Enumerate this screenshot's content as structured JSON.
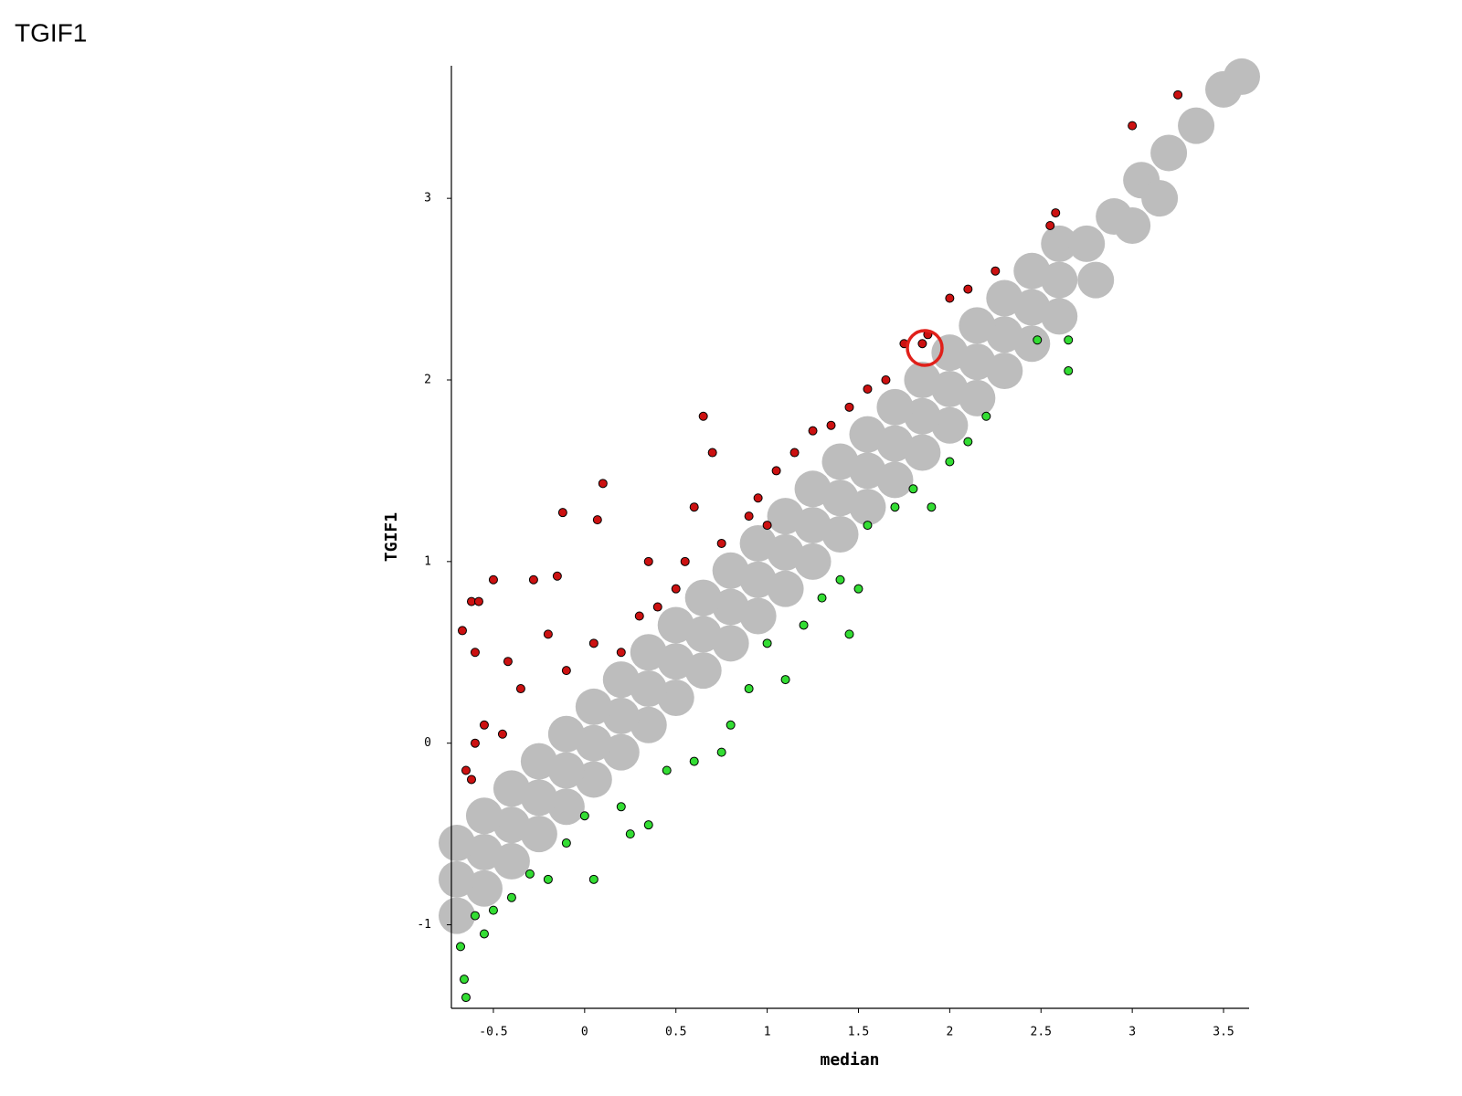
{
  "chart_data": {
    "type": "scatter",
    "title": "TGIF1",
    "xlabel": "median",
    "ylabel": "TGIF1",
    "xlim": [
      -0.73,
      3.64
    ],
    "ylim": [
      -1.46,
      3.73
    ],
    "xticks": [
      -0.5,
      0,
      0.5,
      1,
      1.5,
      2,
      2.5,
      3,
      3.5
    ],
    "yticks": [
      -1,
      0,
      1,
      2,
      3
    ],
    "grid": false,
    "series": [
      {
        "color": "#bdbdbd",
        "x": [
          -0.7,
          -0.55,
          -0.4,
          -0.25,
          -0.1,
          0.05,
          0.2,
          0.35,
          0.5,
          0.65,
          0.8,
          0.95,
          1.1,
          1.25,
          1.4,
          1.55,
          1.7,
          1.85,
          2,
          2.15,
          2.3,
          2.45,
          2.6,
          -0.7,
          -0.55,
          -0.4,
          -0.25,
          -0.1,
          0.05,
          0.2,
          0.35,
          0.5,
          0.65,
          0.8,
          0.95,
          1.1,
          1.25,
          1.4,
          1.55,
          1.7,
          1.85,
          2,
          2.15,
          2.3,
          2.45,
          2.6,
          -0.7,
          -0.55,
          -0.4,
          -0.25,
          -0.1,
          0.05,
          0.2,
          0.35,
          0.5,
          0.65,
          0.8,
          0.95,
          1.1,
          1.25,
          1.4,
          1.55,
          1.7,
          1.85,
          2,
          2.15,
          2.3,
          2.45,
          2.6,
          2.75,
          2.9,
          3.05,
          3.2,
          3.35,
          3.5,
          3.6,
          2.8,
          3.0,
          3.15
        ],
        "y": [
          -0.95,
          -0.8,
          -0.65,
          -0.5,
          -0.35,
          -0.2,
          -0.05,
          0.1,
          0.25,
          0.4,
          0.55,
          0.7,
          0.85,
          1,
          1.15,
          1.3,
          1.45,
          1.6,
          1.75,
          1.9,
          2.05,
          2.2,
          2.35,
          -0.75,
          -0.6,
          -0.45,
          -0.3,
          -0.15,
          0,
          0.15,
          0.3,
          0.45,
          0.6,
          0.75,
          0.9,
          1.05,
          1.2,
          1.35,
          1.5,
          1.65,
          1.8,
          1.95,
          2.1,
          2.25,
          2.4,
          2.55,
          -0.55,
          -0.4,
          -0.25,
          -0.1,
          0.05,
          0.2,
          0.35,
          0.5,
          0.65,
          0.8,
          0.95,
          1.1,
          1.25,
          1.4,
          1.55,
          1.7,
          1.85,
          2,
          2.15,
          2.3,
          2.45,
          2.6,
          2.75,
          2.75,
          2.9,
          3.1,
          3.25,
          3.4,
          3.6,
          3.67,
          2.55,
          2.85,
          3.0
        ]
      },
      {
        "color": "#cc1111",
        "edgecolor": "#000000",
        "x": [
          -0.67,
          -0.62,
          -0.58,
          -0.6,
          -0.55,
          -0.6,
          -0.65,
          -0.62,
          -0.5,
          -0.42,
          -0.35,
          -0.28,
          -0.2,
          -0.15,
          -0.1,
          -0.12,
          0.05,
          0.1,
          0.07,
          0.3,
          0.35,
          0.5,
          0.55,
          0.6,
          0.65,
          0.7,
          0.75,
          0.9,
          0.95,
          1.05,
          1.15,
          1.25,
          1.35,
          1.45,
          1.55,
          1.65,
          1.75,
          1.85,
          1.88,
          2.0,
          2.1,
          2.25,
          2.55,
          2.58,
          3.0,
          3.25,
          -0.45,
          0.2,
          0.4,
          1.0
        ],
        "y": [
          0.62,
          0.78,
          0.78,
          0.5,
          0.1,
          0.0,
          -0.15,
          -0.2,
          0.9,
          0.45,
          0.3,
          0.9,
          0.6,
          0.92,
          0.4,
          1.27,
          0.55,
          1.43,
          1.23,
          0.7,
          1.0,
          0.85,
          1.0,
          1.3,
          1.8,
          1.6,
          1.1,
          1.25,
          1.35,
          1.5,
          1.6,
          1.72,
          1.75,
          1.85,
          1.95,
          2.0,
          2.2,
          2.2,
          2.25,
          2.45,
          2.5,
          2.6,
          2.85,
          2.92,
          3.4,
          3.57,
          0.05,
          0.5,
          0.75,
          1.2
        ]
      },
      {
        "color": "#33dd33",
        "edgecolor": "#000000",
        "x": [
          -0.68,
          -0.66,
          -0.65,
          -0.6,
          -0.55,
          -0.5,
          -0.4,
          -0.3,
          -0.2,
          -0.1,
          0.0,
          0.05,
          0.2,
          0.35,
          0.45,
          0.6,
          0.75,
          0.8,
          0.9,
          1.0,
          1.1,
          1.2,
          1.3,
          1.45,
          1.4,
          1.55,
          1.7,
          1.8,
          1.9,
          2.0,
          2.1,
          2.2,
          2.65,
          2.65,
          2.48,
          1.5,
          0.25
        ],
        "y": [
          -1.12,
          -1.3,
          -1.4,
          -0.95,
          -1.05,
          -0.92,
          -0.85,
          -0.72,
          -0.75,
          -0.55,
          -0.4,
          -0.75,
          -0.35,
          -0.45,
          -0.15,
          -0.1,
          -0.05,
          0.1,
          0.3,
          0.55,
          0.35,
          0.65,
          0.8,
          0.6,
          0.9,
          1.2,
          1.3,
          1.4,
          1.3,
          1.55,
          1.66,
          1.8,
          2.05,
          2.22,
          2.22,
          0.85,
          -0.5
        ]
      }
    ]
  }
}
